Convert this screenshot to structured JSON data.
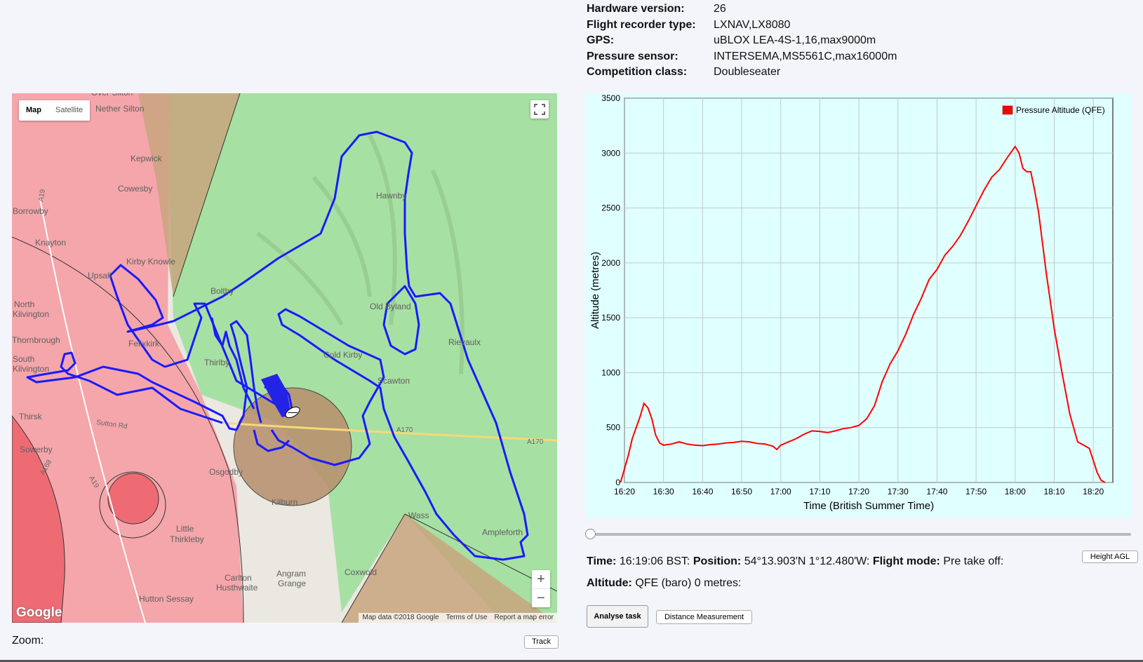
{
  "info": [
    {
      "label": "Hardware version:",
      "value": "26"
    },
    {
      "label": "Flight recorder type:",
      "value": "LXNAV,LX8080"
    },
    {
      "label": "GPS:",
      "value": "uBLOX LEA-4S-1,16,max9000m"
    },
    {
      "label": "Pressure sensor:",
      "value": "INTERSEMA,MS5561C,max16000m"
    },
    {
      "label": "Competition class:",
      "value": "Doubleseater"
    }
  ],
  "map": {
    "type_buttons": [
      "Map",
      "Satellite"
    ],
    "active_type": "Map",
    "zoom_in": "+",
    "zoom_out": "−",
    "logo": "Google",
    "footer": [
      "Map data ©2018 Google",
      "Terms of Use",
      "Report a map error"
    ],
    "places": [
      "Over Silton",
      "Nether Silton",
      "Kepwick",
      "Cowesby",
      "Borrowby",
      "Knayton",
      "Kirby Knowle",
      "Upsall",
      "North Kilvington",
      "Felixkirk",
      "Boltby",
      "Hawnby",
      "Old Byland",
      "Rievaulx",
      "Cold Kirby",
      "Scawton",
      "Thornbrough",
      "South Kilvington",
      "Thirsk",
      "Sowerby",
      "Osgodby",
      "Kilburn",
      "Little Thirkleby",
      "Carlton Husthwaite",
      "Angram Grange",
      "Coxwold",
      "Hutton Sessay",
      "Wass",
      "Ampleforth",
      "Thirlby"
    ],
    "roads": [
      "A19",
      "A170",
      "Sutton Rd",
      "A168"
    ],
    "colors": {
      "track": "#1a1aff",
      "airspace_red": "#f4a0a6",
      "park_green": "#a7e0a3",
      "restricted_brown": "#b88e6c"
    }
  },
  "zoom": {
    "label": "Zoom:",
    "track_button": "Track"
  },
  "chart_data": {
    "type": "line",
    "title": "",
    "xlabel": "Time (British Summer Time)",
    "ylabel": "Altitude (metres)",
    "ylim": [
      0,
      3500
    ],
    "xlim": [
      "16:20",
      "18:25"
    ],
    "x_ticks": [
      "16:20",
      "16:30",
      "16:40",
      "16:50",
      "17:00",
      "17:10",
      "17:20",
      "17:30",
      "17:40",
      "17:50",
      "18:00",
      "18:10",
      "18:20"
    ],
    "y_ticks": [
      0,
      500,
      1000,
      1500,
      2000,
      2500,
      3000,
      3500
    ],
    "grid": true,
    "legend": "top-right",
    "background": "#e0ffff",
    "series": [
      {
        "name": "Pressure Altitude (QFE)",
        "color": "#ff0000",
        "x": [
          "16:19",
          "16:21",
          "16:22",
          "16:24",
          "16:25",
          "16:26",
          "16:27",
          "16:28",
          "16:29",
          "16:30",
          "16:32",
          "16:34",
          "16:36",
          "16:38",
          "16:40",
          "16:42",
          "16:44",
          "16:46",
          "16:48",
          "16:50",
          "16:52",
          "16:54",
          "16:56",
          "16:58",
          "16:59",
          "17:00",
          "17:02",
          "17:04",
          "17:06",
          "17:08",
          "17:10",
          "17:12",
          "17:14",
          "17:16",
          "17:18",
          "17:20",
          "17:22",
          "17:24",
          "17:26",
          "17:28",
          "17:30",
          "17:32",
          "17:34",
          "17:36",
          "17:38",
          "17:40",
          "17:42",
          "17:44",
          "17:46",
          "17:48",
          "17:50",
          "17:52",
          "17:54",
          "17:56",
          "17:58",
          "18:00",
          "18:01",
          "18:02",
          "18:03",
          "18:04",
          "18:05",
          "18:06",
          "18:08",
          "18:10",
          "18:12",
          "18:14",
          "18:16",
          "18:18",
          "18:19",
          "18:20",
          "18:21",
          "18:22",
          "18:23"
        ],
        "values": [
          0,
          250,
          400,
          600,
          720,
          680,
          580,
          430,
          360,
          340,
          350,
          370,
          350,
          340,
          335,
          345,
          350,
          360,
          365,
          375,
          370,
          355,
          350,
          330,
          300,
          340,
          370,
          400,
          440,
          470,
          465,
          455,
          470,
          490,
          500,
          520,
          580,
          700,
          920,
          1080,
          1200,
          1350,
          1530,
          1680,
          1850,
          1940,
          2070,
          2150,
          2250,
          2380,
          2520,
          2660,
          2780,
          2850,
          2960,
          3060,
          3000,
          2860,
          2830,
          2830,
          2660,
          2460,
          1900,
          1400,
          1000,
          620,
          370,
          330,
          310,
          200,
          90,
          20,
          0
        ]
      }
    ]
  },
  "controls": {
    "time_label": "Time:",
    "time_value": "16:19:06 BST:",
    "position_label": "Position:",
    "position_value": "54°13.903'N 1°12.480'W:",
    "mode_label": "Flight mode:",
    "mode_value": "Pre take off:",
    "altitude_label": "Altitude:",
    "altitude_value": "QFE (baro) 0 metres:",
    "height_button": "Height AGL",
    "analyse_button": "Analyse task",
    "distance_button": "Distance Measurement",
    "slider_position": 0
  }
}
